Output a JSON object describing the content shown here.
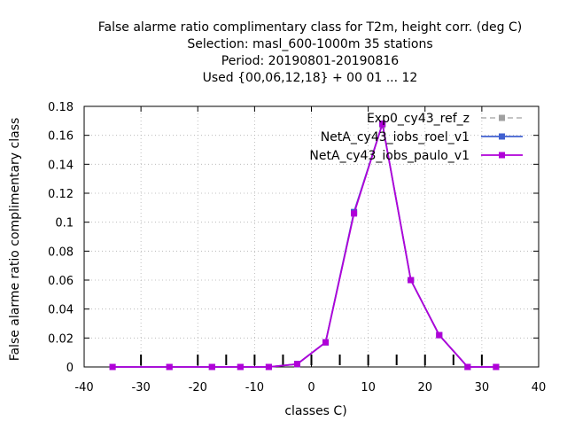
{
  "chart_data": {
    "type": "line",
    "title": [
      "False alarme ratio complimentary class  for T2m, height corr. (deg C)",
      "Selection: masl_600-1000m     35 stations",
      "Period: 20190801-20190816",
      "Used {00,06,12,18} + 00 01 ... 12"
    ],
    "xlabel": "classes C)",
    "ylabel": "False alarme ratio complimentary class",
    "xlim": [
      -40,
      40
    ],
    "ylim": [
      0,
      0.18
    ],
    "xticks": [
      -40,
      -30,
      -20,
      -10,
      0,
      10,
      20,
      30,
      40
    ],
    "xtick_labels": [
      "-40",
      "-30",
      "-20",
      "-10",
      "0",
      "10",
      "20",
      "30",
      "40"
    ],
    "yticks": [
      0,
      0.02,
      0.04,
      0.06,
      0.08,
      0.1,
      0.12,
      0.14,
      0.16,
      0.18
    ],
    "ytick_labels": [
      "0",
      "0.02",
      "0.04",
      "0.06",
      "0.08",
      "0.1",
      "0.12",
      "0.14",
      "0.16",
      "0.18"
    ],
    "grid": true,
    "legend_position": "top-right",
    "class_markers": [
      -30,
      -20,
      -15,
      -10,
      -5,
      0,
      5,
      10,
      15,
      20,
      25,
      30
    ],
    "series": [
      {
        "name": "Exp0_cy43_ref_z",
        "color": "#a0a0a0",
        "dash": true,
        "x": [
          -35,
          -25,
          -17.5,
          -12.5,
          -7.5,
          -2.5,
          2.5,
          7.5,
          12.5,
          17.5,
          22.5,
          27.5,
          32.5
        ],
        "y": [
          0,
          0,
          0,
          0,
          0,
          0.002,
          0.017,
          0.107,
          0.167,
          0.06,
          0.022,
          0,
          0
        ]
      },
      {
        "name": "NetA_cy43_iobs_roel_v1",
        "color": "#4060d0",
        "dash": false,
        "x": [
          -35,
          -25,
          -17.5,
          -12.5,
          -7.5,
          -2.5,
          2.5,
          7.5,
          12.5,
          17.5,
          22.5,
          27.5,
          32.5
        ],
        "y": [
          0,
          0,
          0,
          0,
          0,
          0.002,
          0.017,
          0.107,
          0.168,
          0.06,
          0.022,
          0,
          0
        ]
      },
      {
        "name": "NetA_cy43_iobs_paulo_v1",
        "color": "#b000d8",
        "dash": false,
        "x": [
          -35,
          -25,
          -17.5,
          -12.5,
          -7.5,
          -2.5,
          2.5,
          7.5,
          12.5,
          17.5,
          22.5,
          27.5,
          32.5
        ],
        "y": [
          0,
          0,
          0,
          0,
          0,
          0.002,
          0.017,
          0.106,
          0.168,
          0.06,
          0.022,
          0,
          0
        ]
      }
    ]
  }
}
